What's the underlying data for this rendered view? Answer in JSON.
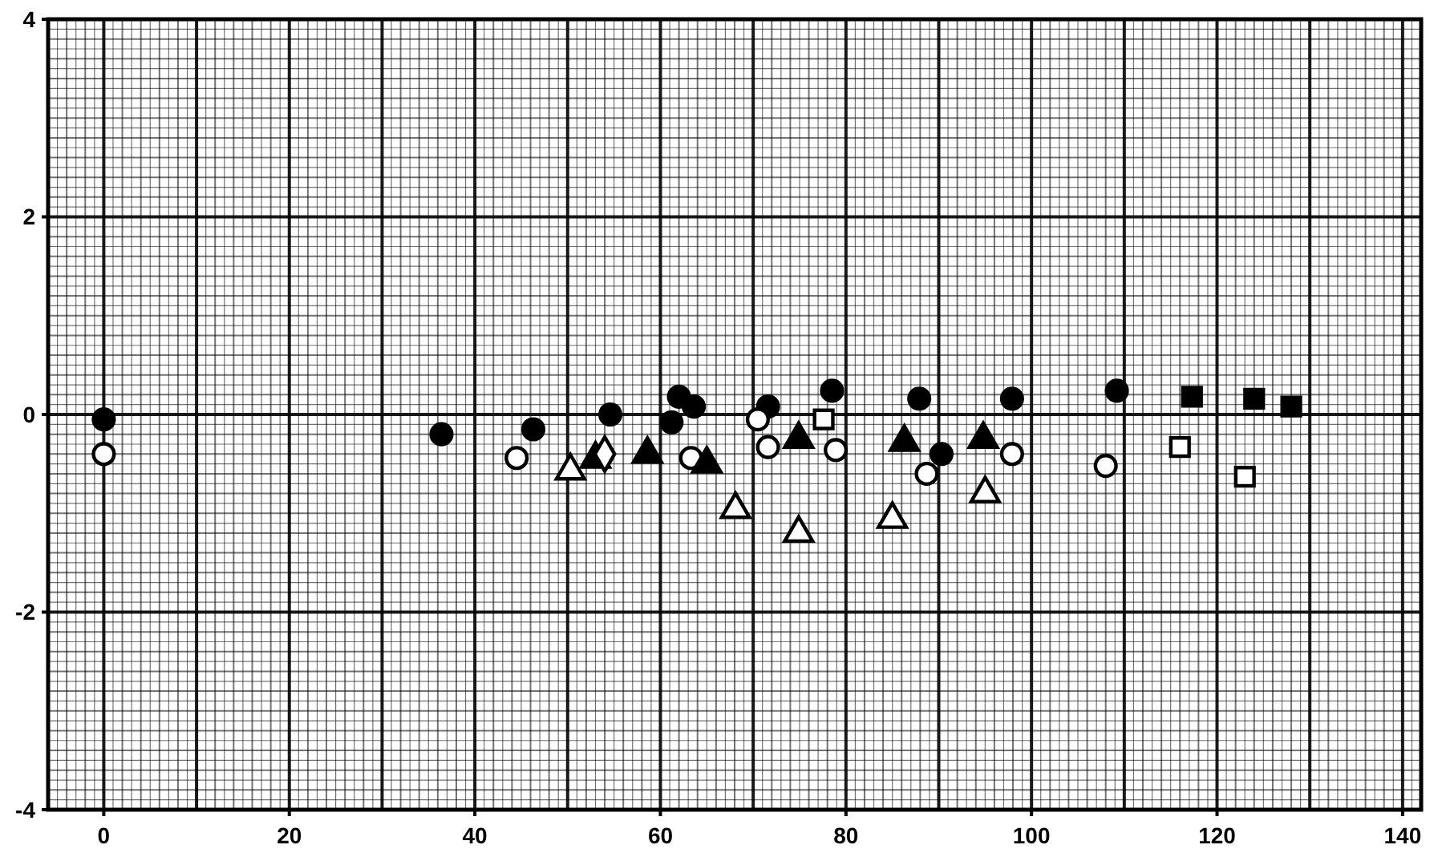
{
  "chart_data": {
    "type": "scatter",
    "xlim": [
      -6,
      142
    ],
    "ylim": [
      -4,
      4
    ],
    "xticks": [
      0,
      20,
      40,
      60,
      80,
      100,
      120,
      140
    ],
    "yticks": [
      -4,
      -2,
      0,
      2,
      4
    ],
    "grid": true,
    "series": [
      {
        "marker": "circle",
        "color": "#000000",
        "x": [
          0,
          36.4,
          46.3,
          54.6,
          61.2,
          62,
          63.6,
          71.6,
          78.5,
          87.9,
          90.3,
          97.9,
          109.2
        ],
        "values": [
          -0.05,
          -0.2,
          -0.15,
          0,
          -0.08,
          0.18,
          0.08,
          0.08,
          0.24,
          0.16,
          -0.4,
          0.16,
          0.24
        ]
      },
      {
        "marker": "circle",
        "color": "#ffffff",
        "x": [
          0,
          44.5,
          63.3,
          70.5,
          71.6,
          78.9,
          88.7,
          97.9,
          108
        ],
        "values": [
          -0.4,
          -0.44,
          -0.44,
          -0.05,
          -0.33,
          -0.36,
          -0.6,
          -0.4,
          -0.52
        ]
      },
      {
        "marker": "triangle",
        "color": "#000000",
        "x": [
          53,
          58.6,
          65,
          74.9,
          86.3,
          94.8
        ],
        "values": [
          -0.45,
          -0.4,
          -0.5,
          -0.25,
          -0.28,
          -0.25
        ]
      },
      {
        "marker": "triangle",
        "color": "#ffffff",
        "x": [
          50.3,
          68.1,
          74.9,
          85,
          95
        ],
        "values": [
          -0.57,
          -0.96,
          -1.2,
          -1.06,
          -0.8
        ]
      },
      {
        "marker": "diamond",
        "color": "#ffffff",
        "x": [
          54
        ],
        "values": [
          -0.4
        ]
      },
      {
        "marker": "square",
        "color": "#000000",
        "x": [
          117.3,
          124,
          128
        ],
        "values": [
          0.18,
          0.16,
          0.08
        ]
      },
      {
        "marker": "square",
        "color": "#ffffff",
        "x": [
          77.6,
          116,
          123
        ],
        "values": [
          -0.05,
          -0.33,
          -0.63
        ]
      }
    ]
  }
}
